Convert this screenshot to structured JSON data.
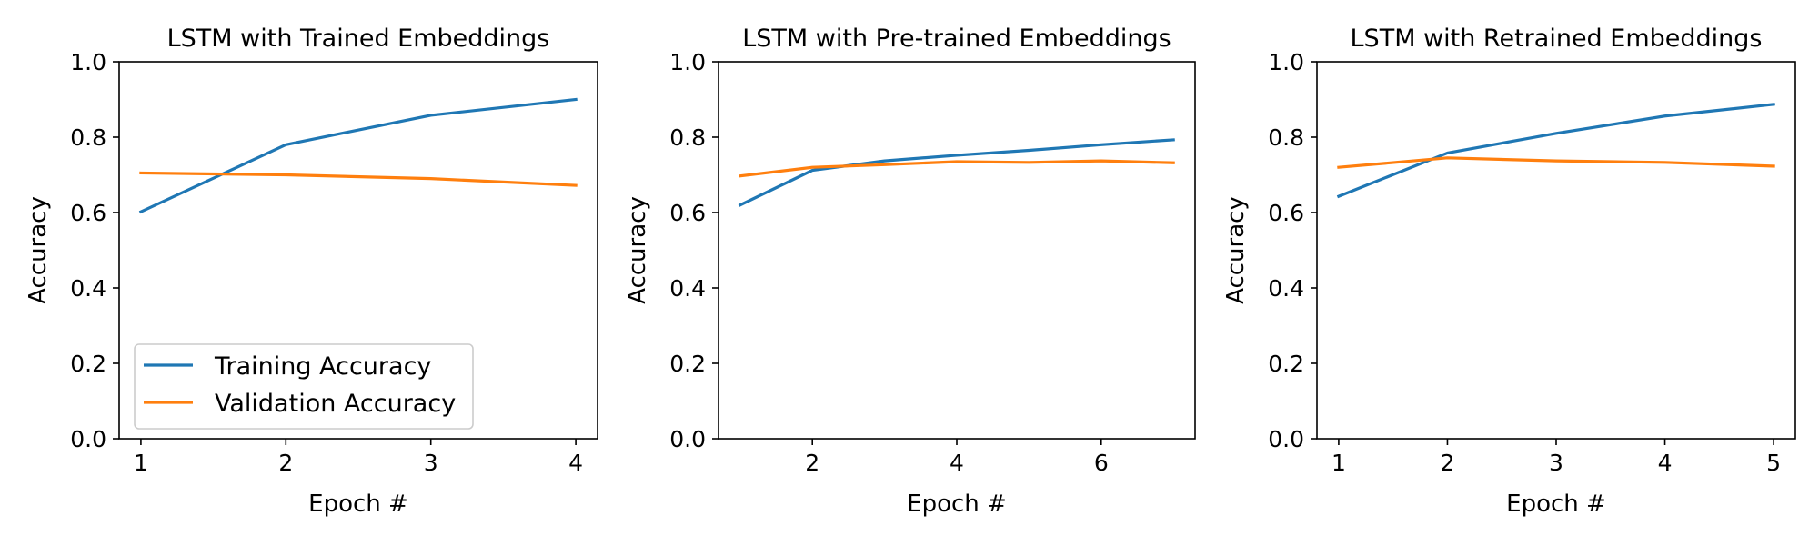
{
  "colors": {
    "training": "#1f77b4",
    "validation": "#ff7f0e"
  },
  "legend": {
    "placement": "lower-left",
    "shown_in_chart": 0,
    "entries": [
      "Training Accuracy",
      "Validation Accuracy"
    ]
  },
  "chart_data": [
    {
      "type": "line",
      "title": "LSTM with Trained Embeddings",
      "xlabel": "Epoch #",
      "ylabel": "Accuracy",
      "xlim": [
        0.85,
        4.15
      ],
      "ylim": [
        0.0,
        1.0
      ],
      "xticks": [
        1,
        2,
        3,
        4
      ],
      "yticks": [
        0.0,
        0.2,
        0.4,
        0.6,
        0.8,
        1.0
      ],
      "grid": false,
      "x": [
        1,
        2,
        3,
        4
      ],
      "series": [
        {
          "name": "Training Accuracy",
          "values": [
            0.602,
            0.78,
            0.858,
            0.9
          ]
        },
        {
          "name": "Validation Accuracy",
          "values": [
            0.705,
            0.7,
            0.69,
            0.672
          ]
        }
      ]
    },
    {
      "type": "line",
      "title": "LSTM with Pre-trained Embeddings",
      "xlabel": "Epoch #",
      "ylabel": "Accuracy",
      "xlim": [
        0.7,
        7.3
      ],
      "ylim": [
        0.0,
        1.0
      ],
      "xticks": [
        2,
        4,
        6
      ],
      "yticks": [
        0.0,
        0.2,
        0.4,
        0.6,
        0.8,
        1.0
      ],
      "grid": false,
      "x": [
        1,
        2,
        3,
        4,
        5,
        6,
        7
      ],
      "series": [
        {
          "name": "Training Accuracy",
          "values": [
            0.62,
            0.712,
            0.737,
            0.752,
            0.765,
            0.78,
            0.793
          ]
        },
        {
          "name": "Validation Accuracy",
          "values": [
            0.697,
            0.72,
            0.727,
            0.735,
            0.733,
            0.737,
            0.732
          ]
        }
      ]
    },
    {
      "type": "line",
      "title": "LSTM with Retrained Embeddings",
      "xlabel": "Epoch #",
      "ylabel": "Accuracy",
      "xlim": [
        0.8,
        5.2
      ],
      "ylim": [
        0.0,
        1.0
      ],
      "xticks": [
        1,
        2,
        3,
        4,
        5
      ],
      "yticks": [
        0.0,
        0.2,
        0.4,
        0.6,
        0.8,
        1.0
      ],
      "grid": false,
      "x": [
        1,
        2,
        3,
        4,
        5
      ],
      "series": [
        {
          "name": "Training Accuracy",
          "values": [
            0.643,
            0.758,
            0.81,
            0.856,
            0.887
          ]
        },
        {
          "name": "Validation Accuracy",
          "values": [
            0.72,
            0.745,
            0.737,
            0.733,
            0.723
          ]
        }
      ]
    }
  ]
}
